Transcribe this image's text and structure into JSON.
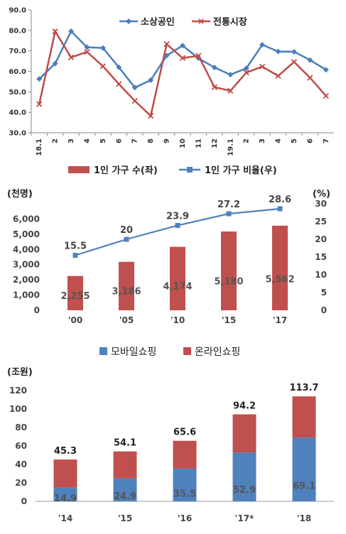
{
  "chart_data": [
    {
      "type": "line",
      "x": [
        "18.1",
        "2",
        "3",
        "4",
        "5",
        "6",
        "7",
        "8",
        "9",
        "10",
        "11",
        "12",
        "19.1",
        "2",
        "3",
        "4",
        "5",
        "6",
        "7"
      ],
      "ylim": [
        30,
        90
      ],
      "yticks": [
        "30.0",
        "40.0",
        "50.0",
        "60.0",
        "70.0",
        "80.0",
        "90.0"
      ],
      "legend_position": "top-center",
      "grid": false,
      "series": [
        {
          "name": "소상공인",
          "color": "#4A7EBB",
          "marker": "diamond",
          "values": [
            56.3,
            63.8,
            79.6,
            71.8,
            71.4,
            62.0,
            52.1,
            55.7,
            67.7,
            72.6,
            66.4,
            61.9,
            58.4,
            61.5,
            73.0,
            69.7,
            69.6,
            65.5,
            60.8
          ]
        },
        {
          "name": "전통시장",
          "color": "#BE4B48",
          "marker": "x",
          "values": [
            44.0,
            79.5,
            66.8,
            69.5,
            62.5,
            53.8,
            45.6,
            38.3,
            73.3,
            66.5,
            67.6,
            52.3,
            50.5,
            59.4,
            62.3,
            57.8,
            64.6,
            56.9,
            48.0
          ]
        }
      ]
    },
    {
      "type": "bar+line",
      "categories": [
        "'00",
        "'05",
        "'10",
        "'15",
        "'17"
      ],
      "ylabel_left": "(천명)",
      "ylabel_right": "(%)",
      "ylim_left": [
        0,
        7000
      ],
      "ylim_right": [
        0,
        30
      ],
      "yticks_left": [
        "0",
        "1,000",
        "2,000",
        "3,000",
        "4,000",
        "5,000",
        "6,000"
      ],
      "yticks_right": [
        "0",
        "5",
        "10",
        "15",
        "20",
        "25",
        "30"
      ],
      "legend_position": "top",
      "series": [
        {
          "name": "1인 가구 수(좌)",
          "kind": "bar",
          "axis": "left",
          "color": "#C0504D",
          "values": [
            2255,
            3186,
            4174,
            5180,
            5562
          ],
          "labels": [
            "2,255",
            "3,186",
            "4,174",
            "5,180",
            "5,562"
          ]
        },
        {
          "name": "1인 가구 비율(우)",
          "kind": "line",
          "axis": "right",
          "color": "#4F81BD",
          "values": [
            15.5,
            20,
            23.9,
            27.2,
            28.6
          ],
          "labels": [
            "15.5",
            "20",
            "23.9",
            "27.2",
            "28.6"
          ]
        }
      ]
    },
    {
      "type": "stacked-bar",
      "categories": [
        "'14",
        "'15",
        "'16",
        "'17*",
        "'18"
      ],
      "ylabel": "(조원)",
      "ylim": [
        0,
        120
      ],
      "yticks": [
        "0",
        "20",
        "40",
        "60",
        "80",
        "100",
        "120"
      ],
      "legend_position": "top",
      "totals": [
        45.3,
        54.1,
        65.6,
        94.2,
        113.7
      ],
      "total_labels": [
        "45.3",
        "54.1",
        "65.6",
        "94.2",
        "113.7"
      ],
      "series": [
        {
          "name": "모바일쇼핑",
          "color": "#4F81BD",
          "values": [
            14.9,
            24.9,
            35.5,
            52.9,
            69.1
          ],
          "labels": [
            "14.9",
            "24.9",
            "35.5",
            "52.9",
            "69.1"
          ]
        },
        {
          "name": "온라인쇼핑",
          "color": "#C0504D",
          "values": [
            30.4,
            29.2,
            30.1,
            41.3,
            44.6
          ]
        }
      ]
    }
  ]
}
